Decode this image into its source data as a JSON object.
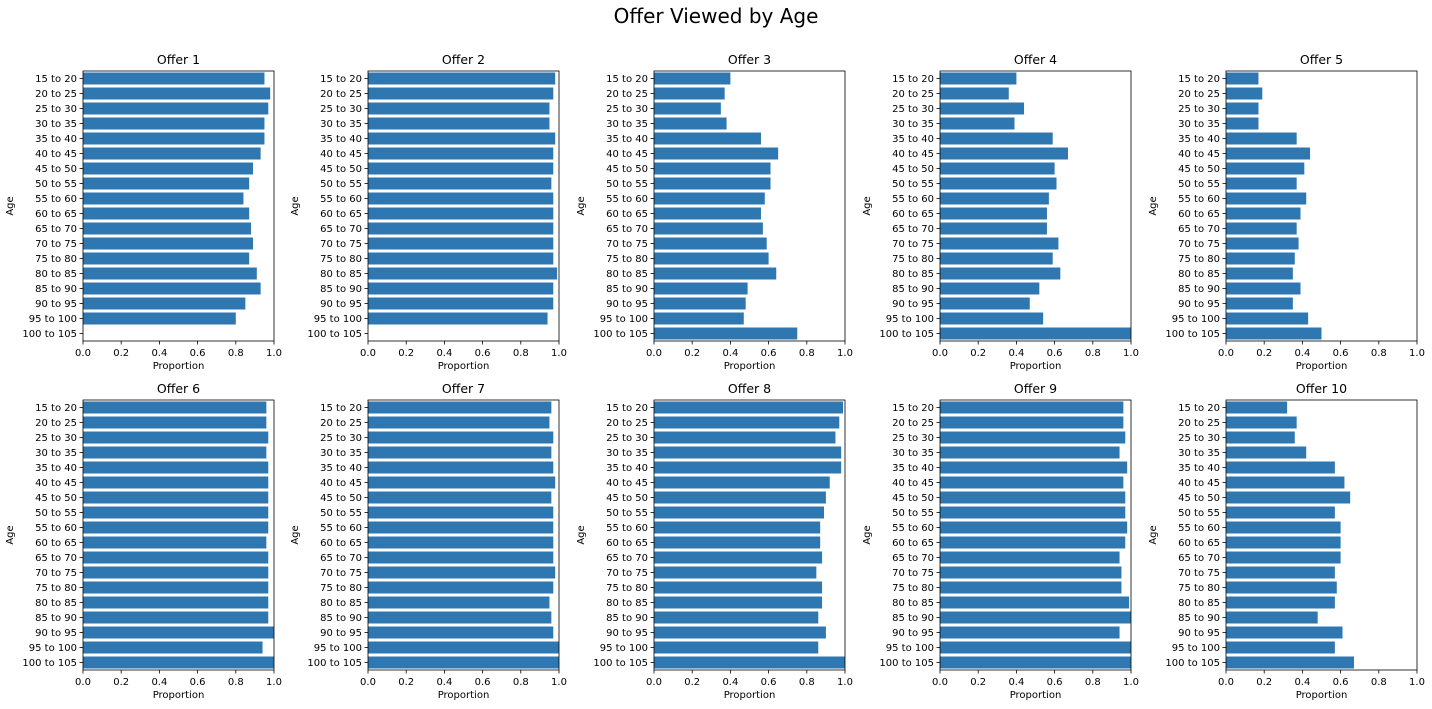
{
  "suptitle": "Offer Viewed by Age",
  "colors": {
    "bar": "#2f77b0",
    "axis": "#000000"
  },
  "chart_data": {
    "type": "bar",
    "orientation": "horizontal",
    "xlabel": "Proportion",
    "ylabel": "Age",
    "xlim": [
      0,
      1
    ],
    "xticks": [
      "0.0",
      "0.2",
      "0.4",
      "0.6",
      "0.8",
      "1.0"
    ],
    "categories": [
      "15 to 20",
      "20 to 25",
      "25 to 30",
      "30 to 35",
      "35 to 40",
      "40 to 45",
      "45 to 50",
      "50 to 55",
      "55 to 60",
      "60 to 65",
      "65 to 70",
      "70 to 75",
      "75 to 80",
      "80 to 85",
      "85 to 90",
      "90 to 95",
      "95 to 100",
      "100 to 105"
    ],
    "series": [
      {
        "title": "Offer 1",
        "values": [
          0.95,
          0.98,
          0.97,
          0.95,
          0.95,
          0.93,
          0.89,
          0.87,
          0.84,
          0.87,
          0.88,
          0.89,
          0.87,
          0.91,
          0.93,
          0.85,
          0.8,
          0.0
        ]
      },
      {
        "title": "Offer 2",
        "values": [
          0.98,
          0.97,
          0.95,
          0.95,
          0.98,
          0.97,
          0.97,
          0.96,
          0.97,
          0.97,
          0.97,
          0.97,
          0.97,
          0.99,
          0.97,
          0.97,
          0.94,
          0.0
        ]
      },
      {
        "title": "Offer 3",
        "values": [
          0.4,
          0.37,
          0.35,
          0.38,
          0.56,
          0.65,
          0.61,
          0.61,
          0.58,
          0.56,
          0.57,
          0.59,
          0.6,
          0.64,
          0.49,
          0.48,
          0.47,
          0.75
        ]
      },
      {
        "title": "Offer 4",
        "values": [
          0.4,
          0.36,
          0.44,
          0.39,
          0.59,
          0.67,
          0.6,
          0.61,
          0.57,
          0.56,
          0.56,
          0.62,
          0.59,
          0.63,
          0.52,
          0.47,
          0.54,
          1.0
        ]
      },
      {
        "title": "Offer 5",
        "values": [
          0.17,
          0.19,
          0.17,
          0.17,
          0.37,
          0.44,
          0.41,
          0.37,
          0.42,
          0.39,
          0.37,
          0.38,
          0.36,
          0.35,
          0.39,
          0.35,
          0.43,
          0.5
        ]
      },
      {
        "title": "Offer 6",
        "values": [
          0.96,
          0.96,
          0.97,
          0.96,
          0.97,
          0.97,
          0.97,
          0.97,
          0.97,
          0.96,
          0.97,
          0.97,
          0.97,
          0.97,
          0.97,
          1.0,
          0.94,
          1.0
        ]
      },
      {
        "title": "Offer 7",
        "values": [
          0.96,
          0.95,
          0.97,
          0.96,
          0.97,
          0.98,
          0.96,
          0.97,
          0.97,
          0.97,
          0.97,
          0.98,
          0.97,
          0.95,
          0.96,
          0.97,
          1.0,
          1.0
        ]
      },
      {
        "title": "Offer 8",
        "values": [
          0.99,
          0.97,
          0.95,
          0.98,
          0.98,
          0.92,
          0.9,
          0.89,
          0.87,
          0.87,
          0.88,
          0.85,
          0.88,
          0.88,
          0.86,
          0.9,
          0.86,
          1.0
        ]
      },
      {
        "title": "Offer 9",
        "values": [
          0.96,
          0.96,
          0.97,
          0.94,
          0.98,
          0.96,
          0.97,
          0.97,
          0.98,
          0.97,
          0.94,
          0.95,
          0.95,
          0.99,
          1.0,
          0.94,
          1.0,
          1.0
        ]
      },
      {
        "title": "Offer 10",
        "values": [
          0.32,
          0.37,
          0.36,
          0.42,
          0.57,
          0.62,
          0.65,
          0.57,
          0.6,
          0.6,
          0.6,
          0.57,
          0.58,
          0.57,
          0.48,
          0.61,
          0.57,
          0.67
        ]
      }
    ]
  }
}
